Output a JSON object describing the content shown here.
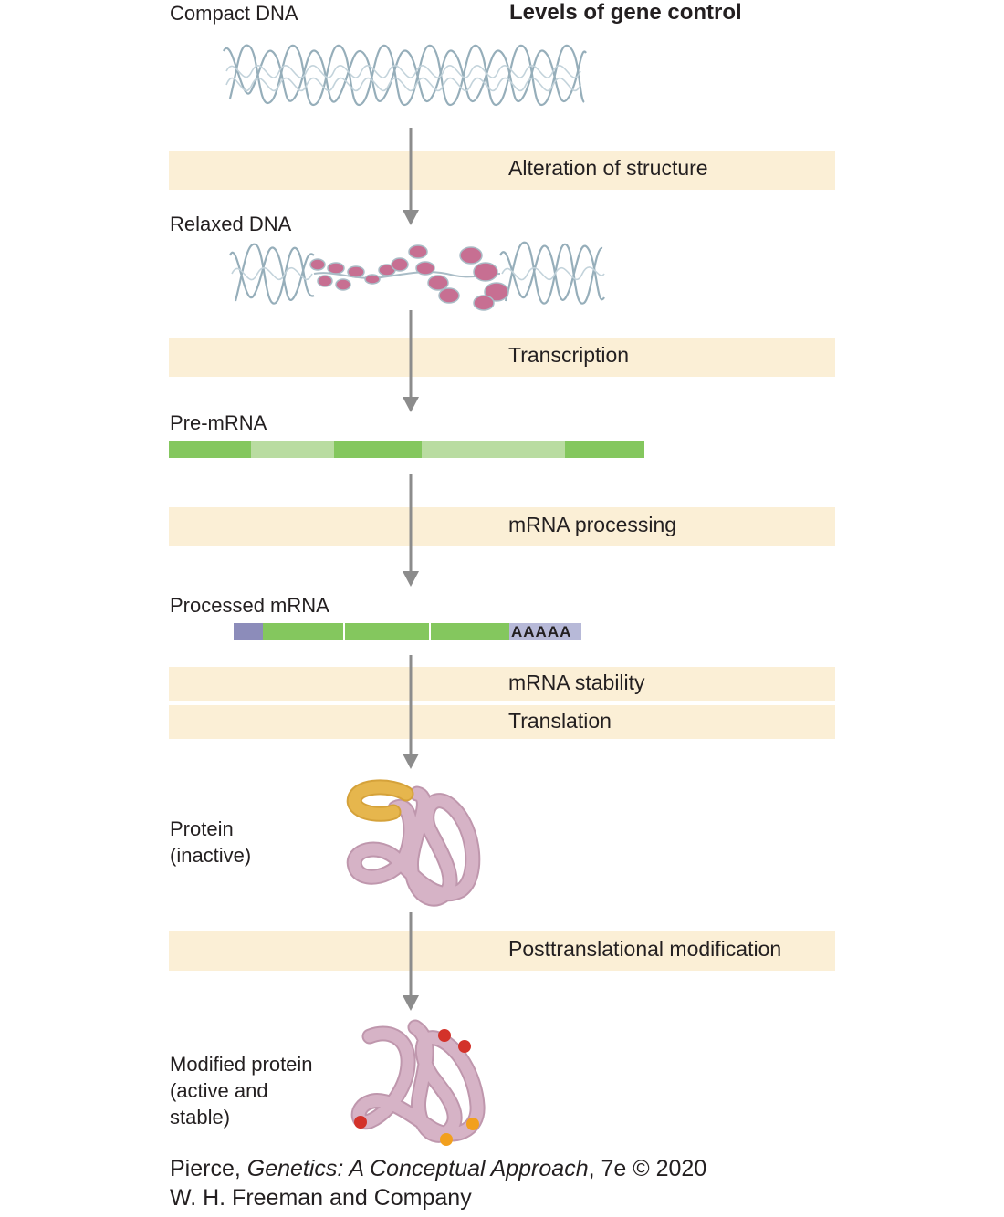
{
  "title": "Levels of gene control",
  "stages": {
    "compact_dna": "Compact DNA",
    "relaxed_dna": "Relaxed DNA",
    "pre_mrna": "Pre-mRNA",
    "processed_mrna": "Processed mRNA",
    "protein_inactive": "Protein\n(inactive)",
    "modified_protein": "Modified protein\n(active and\nstable)"
  },
  "control_levels": {
    "alteration": "Alteration of structure",
    "transcription": "Transcription",
    "processing": "mRNA processing",
    "stability": "mRNA stability",
    "translation": "Translation",
    "posttranslational": "Posttranslational modification"
  },
  "poly_a_tail": "AAAAA",
  "credit": {
    "line1_prefix": "Pierce, ",
    "line1_title": "Genetics: A Conceptual Approach",
    "line1_suffix": ", 7e © 2020",
    "line2": "W. H. Freeman and Company"
  },
  "colors": {
    "band": "#fbefd6",
    "arrow": "#8c8c8c",
    "dna": "#8ba6b3",
    "nucleosome": "#c76f92",
    "exon": "#84c75e",
    "intron": "#b9dca1",
    "cap": "#8c8cba",
    "poly_a": "#b7b9d8",
    "protein": "#d6b3c6",
    "protein_domain": "#e6b64d",
    "modification_red": "#d3322a",
    "modification_orange": "#f2a01e"
  }
}
